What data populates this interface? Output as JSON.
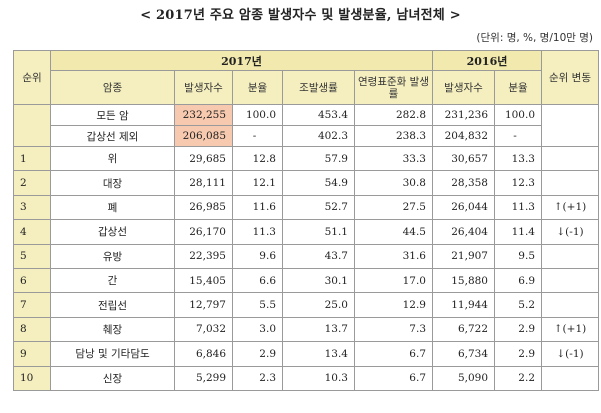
{
  "title": "< 2017년 주요 암종 발생자수 및 발생분율, 남녀전체 >",
  "unit_note": "(단위: 명, %, 명/10만 명)",
  "headers": {
    "rank": "순위",
    "year2017": "2017년",
    "year2016": "2016년",
    "rank_change": "순위 변동",
    "cancer_type": "암종",
    "cases": "발생자수",
    "share": "분율",
    "crude_rate": "조발생률",
    "asr": "연령표준화 발생률",
    "cases_2016": "발생자수",
    "share_2016": "분율"
  },
  "summary_rows": [
    {
      "name": "모든 암",
      "cases": "232,255",
      "share": "100.0",
      "crude": "453.4",
      "asr": "282.8",
      "cases16": "231,236",
      "share16": "100.0"
    },
    {
      "name": "갑상선 제외",
      "cases": "206,085",
      "share": "-",
      "crude": "402.3",
      "asr": "238.3",
      "cases16": "204,832",
      "share16": "-"
    }
  ],
  "rows": [
    {
      "rank": "1",
      "name": "위",
      "cases": "29,685",
      "share": "12.8",
      "crude": "57.9",
      "asr": "33.3",
      "cases16": "30,657",
      "share16": "13.3",
      "change": ""
    },
    {
      "rank": "2",
      "name": "대장",
      "cases": "28,111",
      "share": "12.1",
      "crude": "54.9",
      "asr": "30.8",
      "cases16": "28,358",
      "share16": "12.3",
      "change": ""
    },
    {
      "rank": "3",
      "name": "폐",
      "cases": "26,985",
      "share": "11.6",
      "crude": "52.7",
      "asr": "27.5",
      "cases16": "26,044",
      "share16": "11.3",
      "change": "↑(+1)"
    },
    {
      "rank": "4",
      "name": "갑상선",
      "cases": "26,170",
      "share": "11.3",
      "crude": "51.1",
      "asr": "44.5",
      "cases16": "26,404",
      "share16": "11.4",
      "change": "↓(-1)"
    },
    {
      "rank": "5",
      "name": "유방",
      "cases": "22,395",
      "share": "9.6",
      "crude": "43.7",
      "asr": "31.6",
      "cases16": "21,907",
      "share16": "9.5",
      "change": ""
    },
    {
      "rank": "6",
      "name": "간",
      "cases": "15,405",
      "share": "6.6",
      "crude": "30.1",
      "asr": "17.0",
      "cases16": "15,880",
      "share16": "6.9",
      "change": ""
    },
    {
      "rank": "7",
      "name": "전립선",
      "cases": "12,797",
      "share": "5.5",
      "crude": "25.0",
      "asr": "12.9",
      "cases16": "11,944",
      "share16": "5.2",
      "change": ""
    },
    {
      "rank": "8",
      "name": "췌장",
      "cases": "7,032",
      "share": "3.0",
      "crude": "13.7",
      "asr": "7.3",
      "cases16": "6,722",
      "share16": "2.9",
      "change": "↑(+1)"
    },
    {
      "rank": "9",
      "name": "담낭 및 기타담도",
      "cases": "6,846",
      "share": "2.9",
      "crude": "13.4",
      "asr": "6.7",
      "cases16": "6,734",
      "share16": "2.9",
      "change": "↓(-1)"
    },
    {
      "rank": "10",
      "name": "신장",
      "cases": "5,299",
      "share": "2.3",
      "crude": "10.3",
      "asr": "6.7",
      "cases16": "5,090",
      "share16": "2.2",
      "change": ""
    }
  ]
}
